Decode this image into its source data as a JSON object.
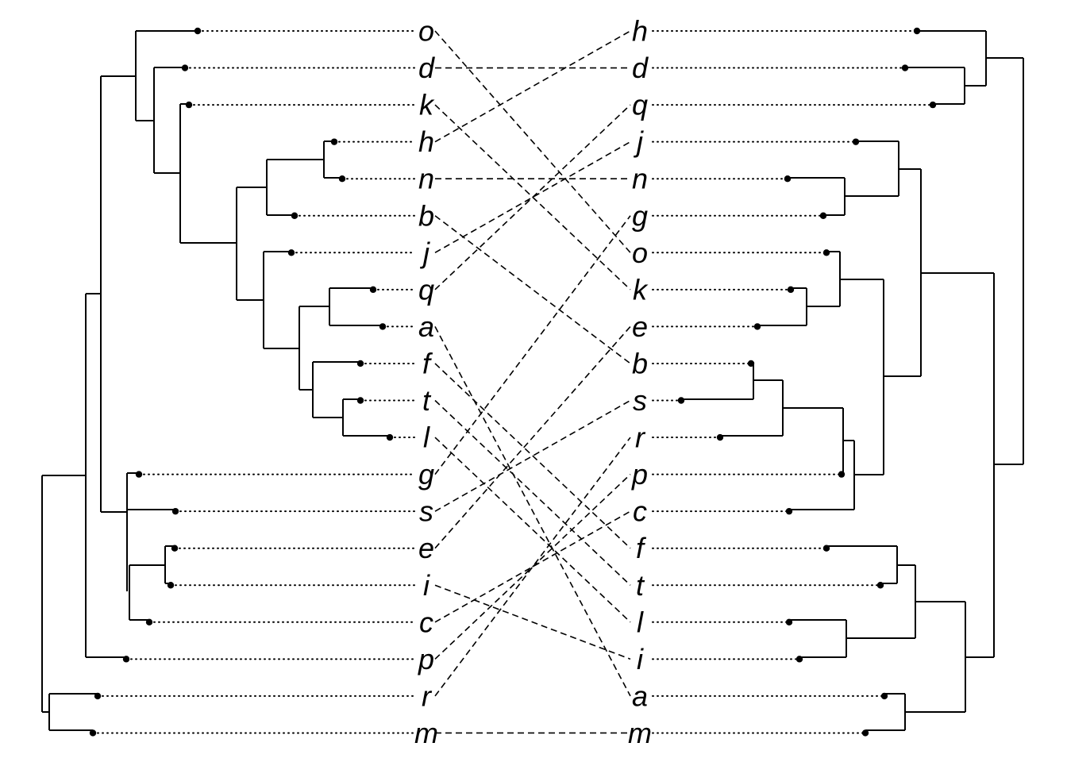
{
  "left_tree": {
    "order": [
      "o",
      "d",
      "k",
      "h",
      "n",
      "b",
      "j",
      "q",
      "a",
      "f",
      "t",
      "l",
      "g",
      "s",
      "e",
      "i",
      "c",
      "p",
      "r",
      "m"
    ],
    "merges": [
      [
        "h",
        "n"
      ],
      [
        "{h,n}",
        "b"
      ],
      [
        "q",
        "a"
      ],
      [
        "t",
        "l"
      ],
      [
        "f",
        "{t,l}"
      ],
      [
        "{q,a}",
        "{f,t,l}"
      ],
      [
        "j",
        "{q,a,f,t,l}"
      ],
      [
        "{h,n,b}",
        "{j,q,a,f,t,l}"
      ],
      [
        "k",
        "{h..l}"
      ],
      [
        "d",
        "{k..l}"
      ],
      [
        "o",
        "{d..l}"
      ],
      [
        "e",
        "i"
      ],
      [
        "{e,i}",
        "c"
      ],
      [
        "g",
        "s"
      ],
      [
        "{g,s}",
        "{e,i,c}"
      ],
      [
        "{o..l}",
        "{g,s,e,i,c}"
      ],
      [
        "{o..c}",
        "p"
      ],
      [
        "r",
        "m"
      ],
      [
        "{o..p}",
        "{r,m}"
      ]
    ]
  },
  "right_tree": {
    "order": [
      "h",
      "d",
      "q",
      "j",
      "n",
      "g",
      "o",
      "k",
      "e",
      "b",
      "s",
      "r",
      "p",
      "c",
      "f",
      "t",
      "l",
      "i",
      "a",
      "m"
    ],
    "merges": [
      [
        "h",
        "{d,q}"
      ],
      [
        "d",
        "q"
      ],
      [
        "n",
        "g"
      ],
      [
        "j",
        "{n,g}"
      ],
      [
        "k",
        "e"
      ],
      [
        "o",
        "{k,e}"
      ],
      [
        "b",
        "s"
      ],
      [
        "{b,s}",
        "r"
      ],
      [
        "{b,s,r}",
        "p"
      ],
      [
        "{b,s,r,p}",
        "c"
      ],
      [
        "{o,k,e}",
        "{b..c}"
      ],
      [
        "{j,n,g}",
        "{o..c}"
      ],
      [
        "f",
        "t"
      ],
      [
        "l",
        "i"
      ],
      [
        "{f,t}",
        "{l,i}"
      ],
      [
        "a",
        "m"
      ],
      [
        "{f,t,l,i}",
        "{a,m}"
      ],
      [
        "{j..c}",
        "{f..m}"
      ],
      [
        "{h,d,q}",
        "{j..m}"
      ]
    ]
  },
  "connections": [
    [
      "o",
      "o"
    ],
    [
      "d",
      "d"
    ],
    [
      "k",
      "k"
    ],
    [
      "h",
      "h"
    ],
    [
      "n",
      "n"
    ],
    [
      "b",
      "b"
    ],
    [
      "j",
      "j"
    ],
    [
      "q",
      "q"
    ],
    [
      "a",
      "a"
    ],
    [
      "f",
      "f"
    ],
    [
      "t",
      "t"
    ],
    [
      "l",
      "l"
    ],
    [
      "g",
      "g"
    ],
    [
      "s",
      "s"
    ],
    [
      "e",
      "e"
    ],
    [
      "i",
      "i"
    ],
    [
      "c",
      "c"
    ],
    [
      "p",
      "p"
    ],
    [
      "r",
      "r"
    ],
    [
      "m",
      "m"
    ]
  ]
}
